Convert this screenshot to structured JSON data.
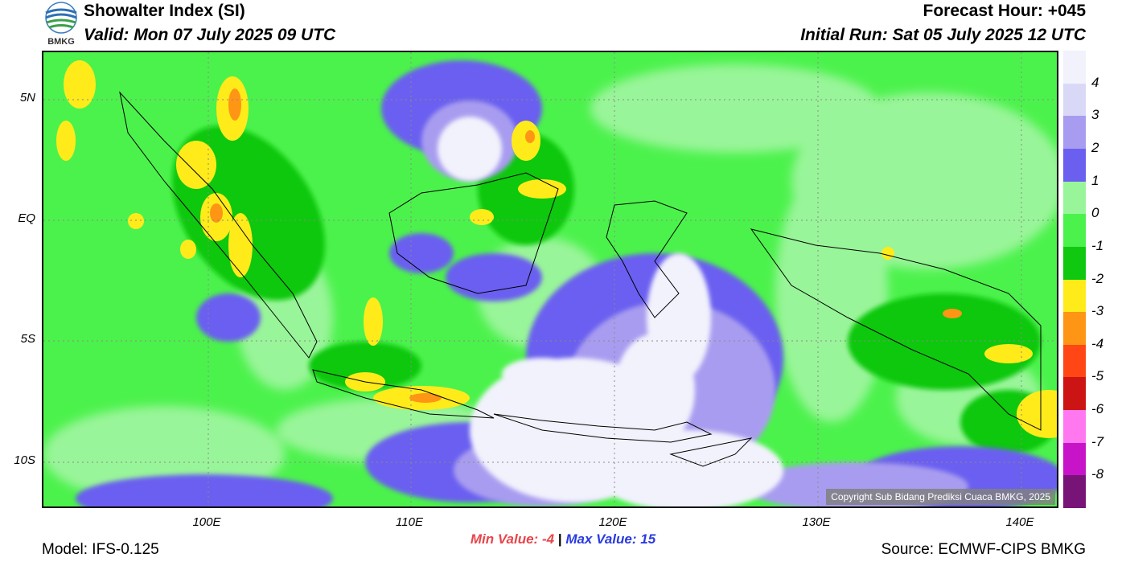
{
  "header": {
    "title": "Showalter Index (SI)",
    "valid": "Valid: Mon 07 July 2025 09 UTC",
    "forecast_hour": "Forecast Hour: +045",
    "initial_run": "Initial Run: Sat 05 July 2025 12 UTC",
    "logo_text": "BMKG"
  },
  "map": {
    "lat_ticks": [
      "5N",
      "EQ",
      "5S",
      "10S"
    ],
    "lon_ticks": [
      "100E",
      "110E",
      "120E",
      "130E",
      "140E"
    ],
    "copyright": "Copyright Sub Bidang Prediksi Cuaca BMKG, 2025"
  },
  "colorbar": {
    "labels": [
      "4",
      "3",
      "2",
      "1",
      "0",
      "-1",
      "-2",
      "-3",
      "-4",
      "-5",
      "-6",
      "-7",
      "-8"
    ],
    "colors": [
      "#f2f2fc",
      "#d9d9f7",
      "#a89cf0",
      "#6b5ff0",
      "#99f599",
      "#4cf24c",
      "#10c810",
      "#ffeb1a",
      "#ff9514",
      "#ff4614",
      "#cc1414",
      "#ff78f0",
      "#c814c8",
      "#781478"
    ]
  },
  "stats": {
    "min_label": "Min Value:",
    "min_value": "-4",
    "separator": "|",
    "max_label": "Max Value:",
    "max_value": "15"
  },
  "footer": {
    "model": "Model: IFS-0.125",
    "source": "Source: ECMWF-CIPS BMKG"
  }
}
